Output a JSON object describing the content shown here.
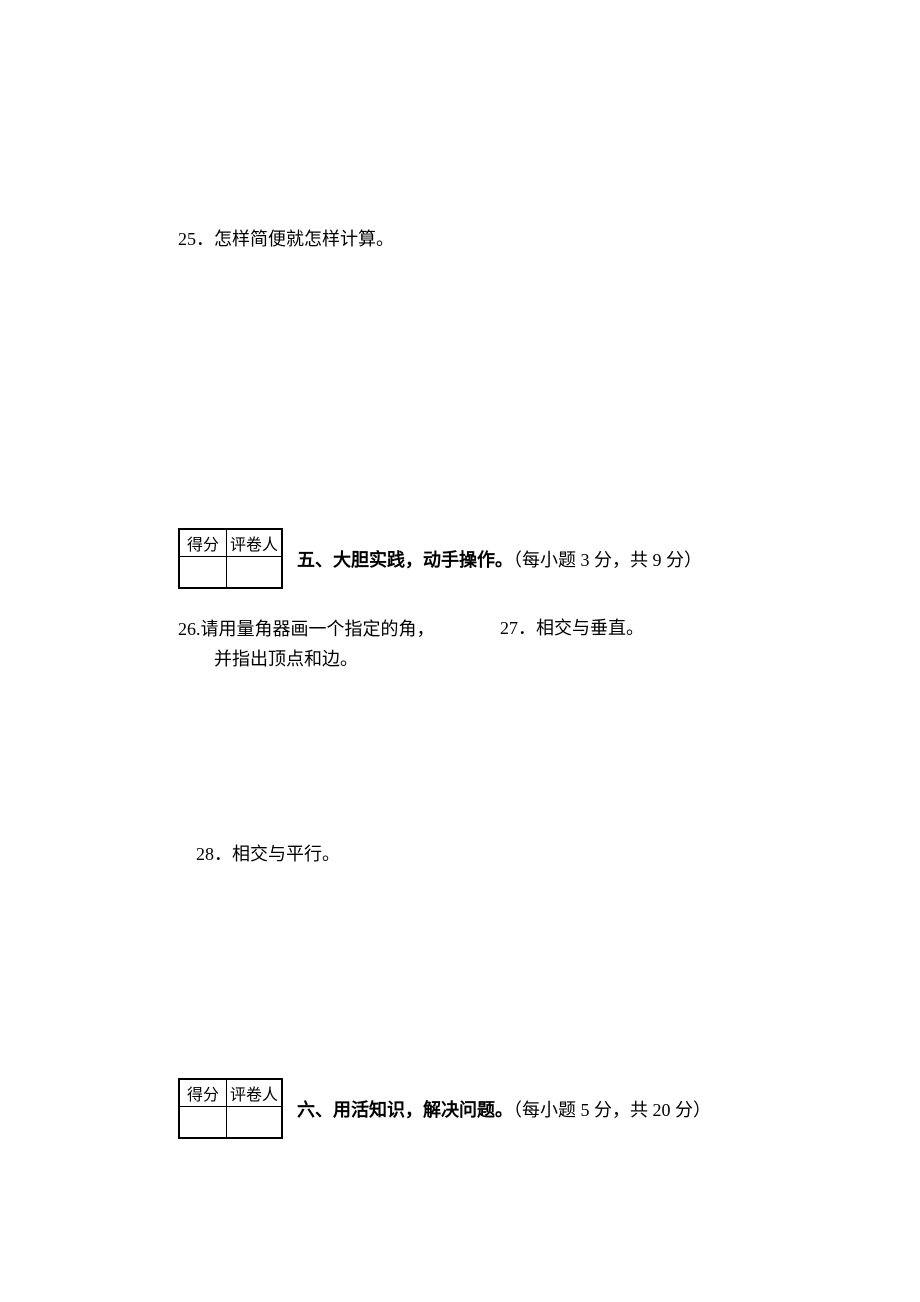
{
  "q25": "25．怎样简便就怎样计算。",
  "scorebox": {
    "score_label": "得分",
    "reviewer_label": "评卷人"
  },
  "section5": {
    "title_bold": "五、大胆实践，动手操作。",
    "title_rest": "（每小题 3 分，共 9 分）"
  },
  "q26": {
    "line1": "26.请用量角器画一个指定的角，",
    "line2": "并指出顶点和边。"
  },
  "q27": "27．相交与垂直。",
  "q28": "28．相交与平行。",
  "section6": {
    "title_bold": "六、用活知识，解决问题。",
    "title_rest": "（每小题 5 分，共 20 分）"
  }
}
